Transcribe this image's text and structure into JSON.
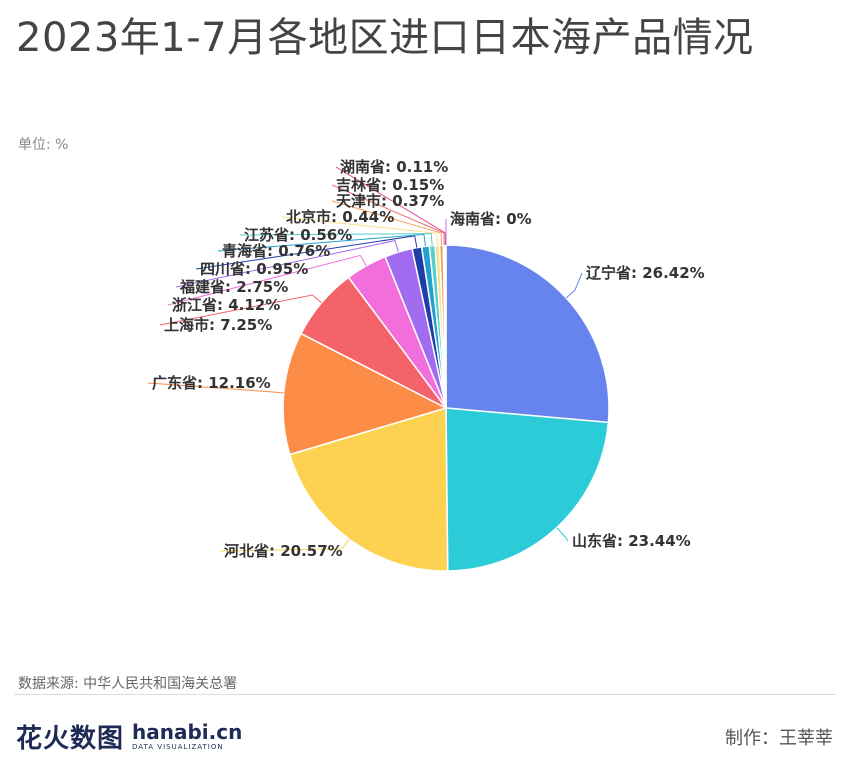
{
  "title": "2023年1-7月各地区进口日本海产品情况",
  "unit_label": "单位: %",
  "source": "数据来源: 中华人民共和国海关总署",
  "author": "制作：王莘莘",
  "logo": {
    "cn": "花火数图",
    "en": "hanabi.cn",
    "en_sub": "DATA VISUALIZATION"
  },
  "colors": {
    "辽宁省": "#6784ee",
    "山东省": "#2bcbd8",
    "河北省": "#fcd250",
    "广东省": "#fd8c46",
    "上海市": "#f4626a",
    "浙江省": "#f26fdb",
    "福建省": "#a26cf0",
    "四川省": "#1f3fa8",
    "青海省": "#23a0d0",
    "江苏省": "#54d0c8",
    "北京市": "#f8e08a",
    "天津市": "#f2a05a",
    "吉林省": "#ef6b6b",
    "湖南省": "#e84393",
    "海南省": "#c56ff0"
  },
  "chart_data": {
    "type": "pie",
    "title": "2023年1-7月各地区进口日本海产品情况",
    "unit": "%",
    "slices": [
      {
        "name": "辽宁省",
        "value": 26.42,
        "label": "辽宁省: 26.42%"
      },
      {
        "name": "山东省",
        "value": 23.44,
        "label": "山东省: 23.44%"
      },
      {
        "name": "河北省",
        "value": 20.57,
        "label": "河北省: 20.57%"
      },
      {
        "name": "广东省",
        "value": 12.16,
        "label": "广东省: 12.16%"
      },
      {
        "name": "上海市",
        "value": 7.25,
        "label": "上海市: 7.25%"
      },
      {
        "name": "浙江省",
        "value": 4.12,
        "label": "浙江省: 4.12%"
      },
      {
        "name": "福建省",
        "value": 2.75,
        "label": "福建省: 2.75%"
      },
      {
        "name": "四川省",
        "value": 0.95,
        "label": "四川省: 0.95%"
      },
      {
        "name": "青海省",
        "value": 0.76,
        "label": "青海省: 0.76%"
      },
      {
        "name": "江苏省",
        "value": 0.56,
        "label": "江苏省: 0.56%"
      },
      {
        "name": "北京市",
        "value": 0.44,
        "label": "北京市: 0.44%"
      },
      {
        "name": "天津市",
        "value": 0.37,
        "label": "天津市: 0.37%"
      },
      {
        "name": "吉林省",
        "value": 0.15,
        "label": "吉林省: 0.15%"
      },
      {
        "name": "湖南省",
        "value": 0.11,
        "label": "湖南省: 0.11%"
      },
      {
        "name": "海南省",
        "value": 0,
        "label": "海南省: 0%"
      }
    ]
  }
}
